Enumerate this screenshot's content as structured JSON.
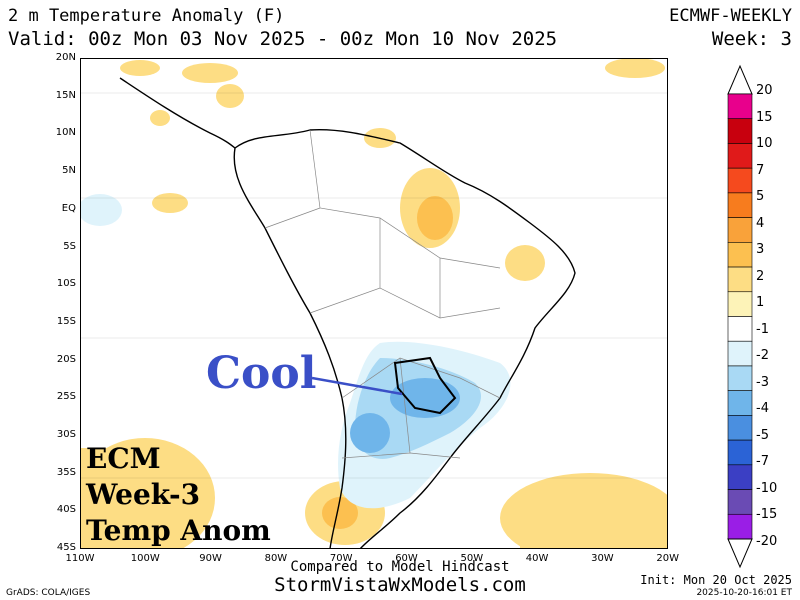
{
  "header": {
    "title": "2 m Temperature Anomaly (F)",
    "valid": "Valid: 00z Mon 03 Nov 2025 - 00z Mon 10 Nov 2025",
    "model": "ECMWF-WEEKLY",
    "week": "Week: 3"
  },
  "axes": {
    "lat_labels": [
      "20N",
      "15N",
      "10N",
      "5N",
      "EQ",
      "5S",
      "10S",
      "15S",
      "20S",
      "25S",
      "30S",
      "35S",
      "40S",
      "45S"
    ],
    "lon_labels": [
      "110W",
      "100W",
      "90W",
      "80W",
      "70W",
      "60W",
      "50W",
      "40W",
      "30W",
      "20W"
    ]
  },
  "colorbar": {
    "labels": [
      "20",
      "15",
      "10",
      "7",
      "5",
      "4",
      "3",
      "2",
      "1",
      "-1",
      "-2",
      "-3",
      "-4",
      "-5",
      "-7",
      "-10",
      "-15",
      "-20"
    ],
    "colors": [
      "#e8008c",
      "#c8000e",
      "#e01a1a",
      "#f54a1e",
      "#f77c1e",
      "#f9a23a",
      "#fcc050",
      "#fddd84",
      "#fdf3b8",
      "#ffffff",
      "#dff3fb",
      "#a9d9f4",
      "#6fb5ea",
      "#4a8fe0",
      "#2b63d6",
      "#3b3fc4",
      "#6a4bb4",
      "#9a1ee6"
    ]
  },
  "overlay": {
    "line1": "ECM",
    "line2": "Week-3",
    "line3": "Temp Anom",
    "callout": "Cool"
  },
  "footer": {
    "compared": "Compared to Model Hindcast",
    "site": "StormVistaWxModels.com",
    "init": "Init: Mon 20 Oct 2025",
    "timestamp": "2025-10-20-16:01 ET",
    "grads": "GrADS: COLA/IGES"
  }
}
